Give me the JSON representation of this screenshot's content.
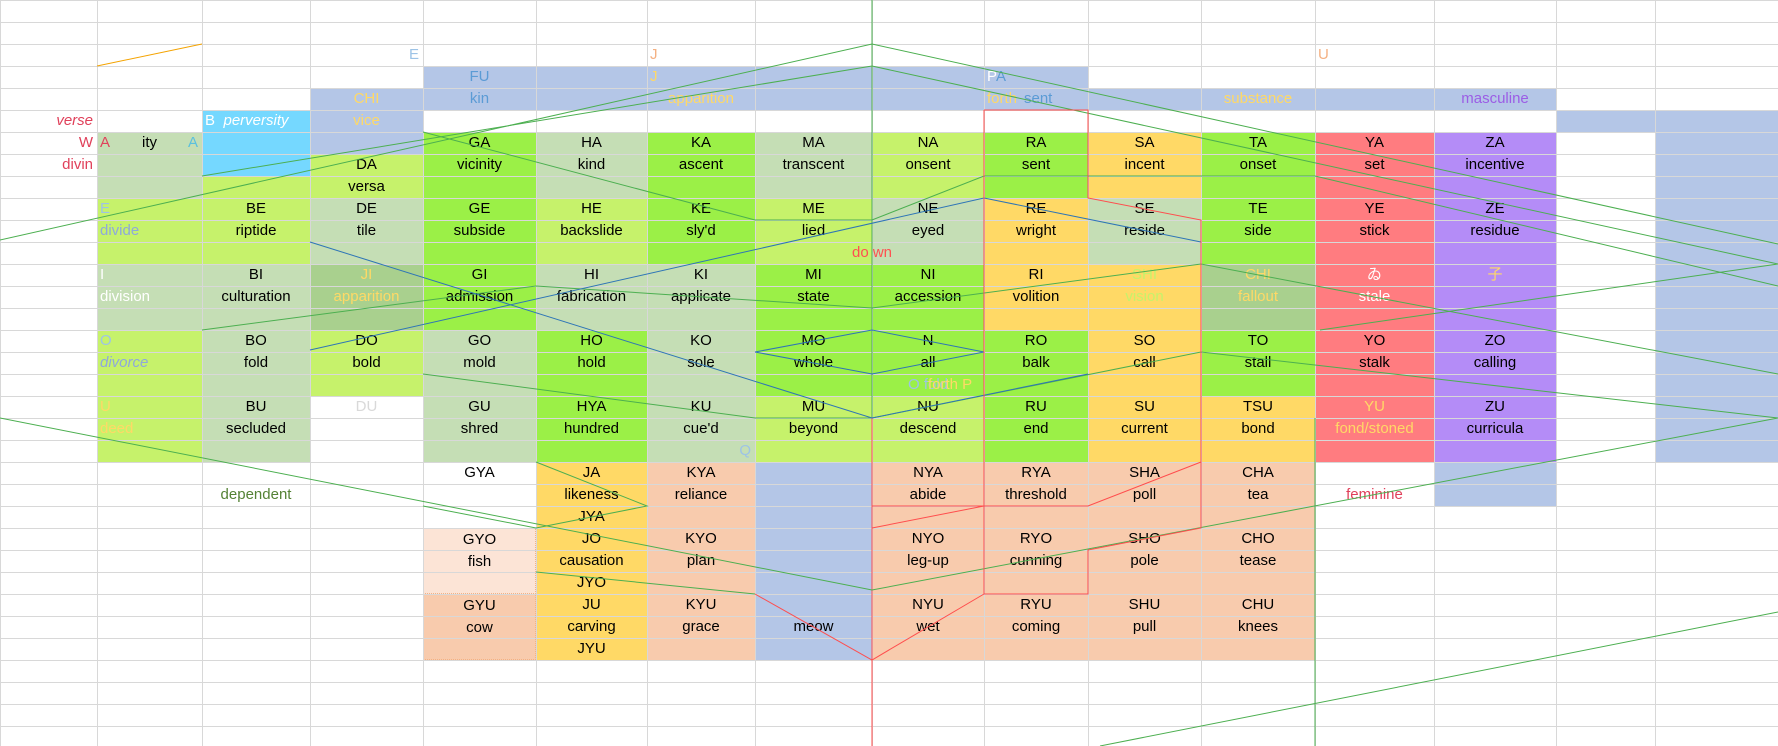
{
  "colors": {
    "blue": "#b4c6e7",
    "lightgreen": "#c6f26b",
    "brightgreen": "#9bf047",
    "sage": "#c5deb5",
    "darksage": "#a9d08e",
    "orange": "#ffd966",
    "red": "#ff7c80",
    "purple": "#b48cf7",
    "peach": "#f8cbad",
    "lightpeach": "#fce4d6",
    "cyan": "#75d8ff",
    "white": "#ffffff"
  },
  "cells": [
    {
      "c": "blue",
      "c0": 10,
      "c1": 13,
      "r0": 4,
      "r1": 5
    },
    {
      "c": "blue",
      "c0": 4,
      "c1": 10,
      "r0": 3,
      "r1": 5
    },
    {
      "c": "blue",
      "c0": 15,
      "c1": 16,
      "r0": 6,
      "r1": 21
    },
    {
      "c": "blue",
      "c0": 13,
      "c1": 14,
      "r0": 4,
      "r1": 5
    },
    {
      "c": "blue",
      "c0": 14,
      "c1": 16,
      "r0": 5,
      "r1": 6
    },
    {
      "c": "blue",
      "c0": 3,
      "c1": 4,
      "r0": 4,
      "r1": 7
    },
    {
      "c": "blue",
      "c0": 7,
      "c1": 8,
      "r0": 21,
      "r1": 30
    },
    {
      "c": "blue",
      "c0": 13,
      "c1": 14,
      "r0": 21,
      "r1": 23
    },
    {
      "c": "sage",
      "c0": 1,
      "c1": 2,
      "r0": 6,
      "r1": 9,
      "t1": "ity",
      "t1c": "#000000"
    },
    {
      "c": "cyan",
      "c0": 2,
      "c1": 3,
      "r0": 5,
      "r1": 8,
      "t1": "perversity",
      "t1c": "#ffffff",
      "t1i": true
    },
    {
      "c": "lightgreen",
      "c0": 2,
      "c1": 3,
      "r0": 8,
      "r1": 9
    },
    {
      "c": "lightgreen",
      "c0": 3,
      "c1": 4,
      "r0": 7,
      "r1": 9,
      "t0": "DA",
      "t1": "versa"
    },
    {
      "c": "brightgreen",
      "c0": 4,
      "c1": 5,
      "r0": 6,
      "r1": 9,
      "t0": "GA",
      "t1": "vicinity"
    },
    {
      "c": "sage",
      "c0": 5,
      "c1": 6,
      "r0": 6,
      "r1": 9,
      "t0": "HA",
      "t1": "kind"
    },
    {
      "c": "brightgreen",
      "c0": 6,
      "c1": 7,
      "r0": 6,
      "r1": 9,
      "t0": "KA",
      "t1": "ascent"
    },
    {
      "c": "sage",
      "c0": 7,
      "c1": 8,
      "r0": 6,
      "r1": 9,
      "t0": "MA",
      "t1": "transcent"
    },
    {
      "c": "lightgreen",
      "c0": 8,
      "c1": 9,
      "r0": 6,
      "r1": 9,
      "t0": "NA",
      "t1": "onsent"
    },
    {
      "c": "brightgreen",
      "c0": 9,
      "c1": 10,
      "r0": 6,
      "r1": 9,
      "t0": "RA",
      "t1": "sent"
    },
    {
      "c": "orange",
      "c0": 10,
      "c1": 11,
      "r0": 6,
      "r1": 9,
      "t0": "SA",
      "t1": "incent"
    },
    {
      "c": "brightgreen",
      "c0": 11,
      "c1": 12,
      "r0": 6,
      "r1": 9,
      "t0": "TA",
      "t1": "onset"
    },
    {
      "c": "red",
      "c0": 12,
      "c1": 13,
      "r0": 6,
      "r1": 9,
      "t0": "YA",
      "t1": "set"
    },
    {
      "c": "purple",
      "c0": 13,
      "c1": 14,
      "r0": 6,
      "r1": 9,
      "t0": "ZA",
      "t1": "incentive"
    },
    {
      "c": "lightgreen",
      "c0": 1,
      "c1": 2,
      "r0": 9,
      "r1": 12,
      "t0": "E",
      "t0c": "#9dc3e6",
      "t0l": true,
      "t1": "divide",
      "t1c": "#8ea9db",
      "t1l": true
    },
    {
      "c": "lightgreen",
      "c0": 2,
      "c1": 3,
      "r0": 9,
      "r1": 12,
      "t0": "BE",
      "t1": "riptide"
    },
    {
      "c": "sage",
      "c0": 3,
      "c1": 4,
      "r0": 9,
      "r1": 12,
      "t0": "DE",
      "t1": "tile"
    },
    {
      "c": "brightgreen",
      "c0": 4,
      "c1": 5,
      "r0": 9,
      "r1": 12,
      "t0": "GE",
      "t1": "subside"
    },
    {
      "c": "lightgreen",
      "c0": 5,
      "c1": 6,
      "r0": 9,
      "r1": 12,
      "t0": "HE",
      "t1": "backslide"
    },
    {
      "c": "brightgreen",
      "c0": 6,
      "c1": 7,
      "r0": 9,
      "r1": 12,
      "t0": "KE",
      "t1": "sly'd"
    },
    {
      "c": "lightgreen",
      "c0": 7,
      "c1": 8,
      "r0": 9,
      "r1": 12,
      "t0": "ME",
      "t1": "lied"
    },
    {
      "c": "sage",
      "c0": 8,
      "c1": 9,
      "r0": 9,
      "r1": 12,
      "t0": "NE",
      "t1": "eyed"
    },
    {
      "c": "orange",
      "c0": 9,
      "c1": 10,
      "r0": 9,
      "r1": 12,
      "t0": "RE",
      "t1": "wright"
    },
    {
      "c": "sage",
      "c0": 10,
      "c1": 11,
      "r0": 9,
      "r1": 12,
      "t0": "SE",
      "t1": "reside"
    },
    {
      "c": "brightgreen",
      "c0": 11,
      "c1": 12,
      "r0": 9,
      "r1": 12,
      "t0": "TE",
      "t1": "side"
    },
    {
      "c": "red",
      "c0": 12,
      "c1": 13,
      "r0": 9,
      "r1": 12,
      "t0": "YE",
      "t1": "stick"
    },
    {
      "c": "purple",
      "c0": 13,
      "c1": 14,
      "r0": 9,
      "r1": 12,
      "t0": "ZE",
      "t1": "residue"
    },
    {
      "c": "sage",
      "c0": 1,
      "c1": 2,
      "r0": 12,
      "r1": 15,
      "t0": "I",
      "t0c": "#ffffff",
      "t0l": true,
      "t1": "division",
      "t1c": "#ffffff",
      "t1l": true
    },
    {
      "c": "sage",
      "c0": 2,
      "c1": 3,
      "r0": 12,
      "r1": 15,
      "t0": "BI",
      "t1": "culturation"
    },
    {
      "c": "darksage",
      "c0": 3,
      "c1": 4,
      "r0": 12,
      "r1": 15,
      "t0": "JI",
      "t0c": "#ffd966",
      "t1": "apparition",
      "t1c": "#ffd966"
    },
    {
      "c": "brightgreen",
      "c0": 4,
      "c1": 5,
      "r0": 12,
      "r1": 15,
      "t0": "GI",
      "t1": "admission"
    },
    {
      "c": "sage",
      "c0": 5,
      "c1": 6,
      "r0": 12,
      "r1": 15,
      "t0": "HI",
      "t1": "fabrication"
    },
    {
      "c": "sage",
      "c0": 6,
      "c1": 7,
      "r0": 12,
      "r1": 15,
      "t0": "KI",
      "t1": "applicate"
    },
    {
      "c": "brightgreen",
      "c0": 7,
      "c1": 8,
      "r0": 12,
      "r1": 15,
      "t0": "MI",
      "t1": "state"
    },
    {
      "c": "brightgreen",
      "c0": 8,
      "c1": 9,
      "r0": 12,
      "r1": 15,
      "t0": "NI",
      "t1": "accession"
    },
    {
      "c": "orange",
      "c0": 9,
      "c1": 10,
      "r0": 12,
      "r1": 15,
      "t0": "RI",
      "t1": "volition"
    },
    {
      "c": "orange",
      "c0": 10,
      "c1": 11,
      "r0": 12,
      "r1": 15,
      "t0": "SHI",
      "t0c": "#c6f26b",
      "t1": "vision",
      "t1c": "#c6f26b"
    },
    {
      "c": "darksage",
      "c0": 11,
      "c1": 12,
      "r0": 12,
      "r1": 15,
      "t0": "CHI",
      "t0c": "#ffd966",
      "t1": "fallout",
      "t1c": "#ffd966"
    },
    {
      "c": "red",
      "c0": 12,
      "c1": 13,
      "r0": 12,
      "r1": 15,
      "t0": "ゐ",
      "t0c": "#ffffff",
      "t1": "stale",
      "t1c": "#ffffff"
    },
    {
      "c": "purple",
      "c0": 13,
      "c1": 14,
      "r0": 12,
      "r1": 15,
      "t0": "子",
      "t0c": "#ffd966",
      "t1": ""
    },
    {
      "c": "lightgreen",
      "c0": 1,
      "c1": 2,
      "r0": 15,
      "r1": 18,
      "t0": "O",
      "t0c": "#9dc3e6",
      "t0l": true,
      "t1": "divorce",
      "t1c": "#8ea9db",
      "t1l": true,
      "t1i": true
    },
    {
      "c": "sage",
      "c0": 2,
      "c1": 3,
      "r0": 15,
      "r1": 18,
      "t0": "BO",
      "t1": "fold"
    },
    {
      "c": "lightgreen",
      "c0": 3,
      "c1": 4,
      "r0": 15,
      "r1": 18,
      "t0": "DO",
      "t1": "bold"
    },
    {
      "c": "sage",
      "c0": 4,
      "c1": 5,
      "r0": 15,
      "r1": 18,
      "t0": "GO",
      "t1": "mold"
    },
    {
      "c": "brightgreen",
      "c0": 5,
      "c1": 6,
      "r0": 15,
      "r1": 18,
      "t0": "HO",
      "t1": "hold"
    },
    {
      "c": "sage",
      "c0": 6,
      "c1": 7,
      "r0": 15,
      "r1": 18,
      "t0": "KO",
      "t1": "sole"
    },
    {
      "c": "brightgreen",
      "c0": 7,
      "c1": 8,
      "r0": 15,
      "r1": 18,
      "t0": "MO",
      "t1": "whole"
    },
    {
      "c": "brightgreen",
      "c0": 8,
      "c1": 9,
      "r0": 15,
      "r1": 18,
      "t0": "N",
      "t1": "all"
    },
    {
      "c": "brightgreen",
      "c0": 9,
      "c1": 10,
      "r0": 15,
      "r1": 18,
      "t0": "RO",
      "t1": "balk"
    },
    {
      "c": "orange",
      "c0": 10,
      "c1": 11,
      "r0": 15,
      "r1": 18,
      "t0": "SO",
      "t1": "call"
    },
    {
      "c": "brightgreen",
      "c0": 11,
      "c1": 12,
      "r0": 15,
      "r1": 18,
      "t0": "TO",
      "t1": "stall"
    },
    {
      "c": "red",
      "c0": 12,
      "c1": 13,
      "r0": 15,
      "r1": 18,
      "t0": "YO",
      "t1": "stalk"
    },
    {
      "c": "purple",
      "c0": 13,
      "c1": 14,
      "r0": 15,
      "r1": 18,
      "t0": "ZO",
      "t1": "calling"
    },
    {
      "c": "lightgreen",
      "c0": 1,
      "c1": 2,
      "r0": 18,
      "r1": 21,
      "t0": "U",
      "t0c": "#ffd966",
      "t0l": true,
      "t1": "deed",
      "t1c": "#ffd966",
      "t1l": true
    },
    {
      "c": "sage",
      "c0": 2,
      "c1": 3,
      "r0": 18,
      "r1": 21,
      "t0": "BU",
      "t1": "secluded"
    },
    {
      "c": "white",
      "c0": 3,
      "c1": 4,
      "r0": 18,
      "r1": 21,
      "t0": "DU",
      "t0c": "#d9d9d9",
      "t1": ""
    },
    {
      "c": "sage",
      "c0": 4,
      "c1": 5,
      "r0": 18,
      "r1": 21,
      "t0": "GU",
      "t1": "shred"
    },
    {
      "c": "brightgreen",
      "c0": 5,
      "c1": 6,
      "r0": 18,
      "r1": 21,
      "t0": "HYA",
      "t1": "hundred"
    },
    {
      "c": "sage",
      "c0": 6,
      "c1": 7,
      "r0": 18,
      "r1": 21,
      "t0": "KU",
      "t1": "cue'd"
    },
    {
      "c": "lightgreen",
      "c0": 7,
      "c1": 8,
      "r0": 18,
      "r1": 21,
      "t0": "MU",
      "t1": "beyond"
    },
    {
      "c": "lightgreen",
      "c0": 8,
      "c1": 9,
      "r0": 18,
      "r1": 21,
      "t0": "NU",
      "t1": "descend"
    },
    {
      "c": "brightgreen",
      "c0": 9,
      "c1": 10,
      "r0": 18,
      "r1": 21,
      "t0": "RU",
      "t1": "end"
    },
    {
      "c": "orange",
      "c0": 10,
      "c1": 11,
      "r0": 18,
      "r1": 21,
      "t0": "SU",
      "t1": "current"
    },
    {
      "c": "orange",
      "c0": 11,
      "c1": 12,
      "r0": 18,
      "r1": 21,
      "t0": "TSU",
      "t1": "bond"
    },
    {
      "c": "red",
      "c0": 12,
      "c1": 13,
      "r0": 18,
      "r1": 21,
      "t0": "YU",
      "t0c": "#ffd966",
      "t1": "fond/stoned",
      "t1c": "#ffd966"
    },
    {
      "c": "purple",
      "c0": 13,
      "c1": 14,
      "r0": 18,
      "r1": 21,
      "t0": "ZU",
      "t1": "curricula"
    },
    {
      "c": "white",
      "c0": 4,
      "c1": 5,
      "r0": 21,
      "r1": 24,
      "t0": "GYA",
      "t1": ""
    },
    {
      "c": "orange",
      "c0": 5,
      "c1": 6,
      "r0": 21,
      "r1": 24,
      "t0": "JA",
      "t1": "likeness",
      "t2": "JYA"
    },
    {
      "c": "peach",
      "c0": 6,
      "c1": 7,
      "r0": 21,
      "r1": 24,
      "t0": "KYA",
      "t1": "reliance"
    },
    {
      "c": "peach",
      "c0": 8,
      "c1": 9,
      "r0": 21,
      "r1": 24,
      "t0": "NYA",
      "t1": "abide"
    },
    {
      "c": "peach",
      "c0": 9,
      "c1": 10,
      "r0": 21,
      "r1": 24,
      "t0": "RYA",
      "t1": "threshold"
    },
    {
      "c": "peach",
      "c0": 10,
      "c1": 11,
      "r0": 21,
      "r1": 24,
      "t0": "SHA",
      "t1": "poll"
    },
    {
      "c": "peach",
      "c0": 11,
      "c1": 12,
      "r0": 21,
      "r1": 24,
      "t0": "CHA",
      "t1": "tea"
    },
    {
      "c": "lightpeach",
      "c0": 4,
      "c1": 5,
      "r0": 24,
      "r1": 27,
      "t0": "GYO",
      "t1": "fish",
      "dot": true
    },
    {
      "c": "orange",
      "c0": 5,
      "c1": 6,
      "r0": 24,
      "r1": 27,
      "t0": "JO",
      "t1": "causation",
      "t2": "JYO"
    },
    {
      "c": "peach",
      "c0": 6,
      "c1": 7,
      "r0": 24,
      "r1": 27,
      "t0": "KYO",
      "t1": "plan"
    },
    {
      "c": "peach",
      "c0": 8,
      "c1": 9,
      "r0": 24,
      "r1": 27,
      "t0": "NYO",
      "t1": "leg-up"
    },
    {
      "c": "peach",
      "c0": 9,
      "c1": 10,
      "r0": 24,
      "r1": 27,
      "t0": "RYO",
      "t1": "cunning"
    },
    {
      "c": "peach",
      "c0": 10,
      "c1": 11,
      "r0": 24,
      "r1": 27,
      "t0": "SHO",
      "t1": "pole"
    },
    {
      "c": "peach",
      "c0": 11,
      "c1": 12,
      "r0": 24,
      "r1": 27,
      "t0": "CHO",
      "t1": "tease"
    },
    {
      "c": "peach",
      "c0": 4,
      "c1": 5,
      "r0": 27,
      "r1": 30,
      "t0": "GYU",
      "t1": "cow",
      "dot": true
    },
    {
      "c": "orange",
      "c0": 5,
      "c1": 6,
      "r0": 27,
      "r1": 30,
      "t0": "JU",
      "t1": "carving",
      "t2": "JYU"
    },
    {
      "c": "peach",
      "c0": 6,
      "c1": 7,
      "r0": 27,
      "r1": 30,
      "t0": "KYU",
      "t1": "grace"
    },
    {
      "c": "blue",
      "c0": 7,
      "c1": 8,
      "r0": 27,
      "r1": 30,
      "t0": "",
      "t1": "meow"
    },
    {
      "c": "peach",
      "c0": 8,
      "c1": 9,
      "r0": 27,
      "r1": 30,
      "t0": "NYU",
      "t1": "wet"
    },
    {
      "c": "peach",
      "c0": 9,
      "c1": 10,
      "r0": 27,
      "r1": 30,
      "t0": "RYU",
      "t1": "coming"
    },
    {
      "c": "peach",
      "c0": 10,
      "c1": 11,
      "r0": 27,
      "r1": 30,
      "t0": "SHU",
      "t1": "pull"
    },
    {
      "c": "peach",
      "c0": 11,
      "c1": 12,
      "r0": 27,
      "r1": 30,
      "t0": "CHU",
      "t1": "knees"
    }
  ],
  "labels": [
    {
      "t": "E",
      "c": "#9dc3e6",
      "col": 3,
      "row": 2,
      "al": "r"
    },
    {
      "t": "J",
      "c": "#f4b183",
      "col": 6,
      "row": 2,
      "al": "l"
    },
    {
      "t": "U",
      "c": "#f4b183",
      "col": 12,
      "row": 2,
      "al": "l"
    },
    {
      "t": "FU",
      "c": "#5b9bd5",
      "col": 4,
      "row": 3,
      "al": "c"
    },
    {
      "t": "kin",
      "c": "#5b9bd5",
      "col": 4,
      "row": 4,
      "al": "c"
    },
    {
      "t": "J",
      "c": "#ffd966",
      "col": 6,
      "row": 3,
      "al": "l"
    },
    {
      "t": "apparition",
      "c": "#ffd966",
      "col": 6,
      "row": 4,
      "al": "c"
    },
    {
      "t": "P",
      "c": "#ffffff",
      "col": 9,
      "row": 3,
      "al": "l"
    },
    {
      "t": "A",
      "c": "#5b9bd5",
      "col": 9,
      "row": 3,
      "al": "l2"
    },
    {
      "t": "forth",
      "c": "#ffd966",
      "col": 9,
      "row": 4,
      "al": "l"
    },
    {
      "t": "sent",
      "c": "#5b9bd5",
      "col": 9,
      "row": 4,
      "al": "l3"
    },
    {
      "t": "substance",
      "c": "#ffd966",
      "col": 11,
      "row": 4,
      "al": "c"
    },
    {
      "t": "masculine",
      "c": "#9b5de5",
      "col": 13,
      "row": 4,
      "al": "c"
    },
    {
      "t": "CHI",
      "c": "#ffd966",
      "col": 3,
      "row": 4,
      "al": "c"
    },
    {
      "t": "vice",
      "c": "#ffd966",
      "col": 3,
      "row": 5,
      "al": "c"
    },
    {
      "t": "verse",
      "c": "#e0405a",
      "col": 0,
      "row": 5,
      "al": "r",
      "i": true
    },
    {
      "t": "W",
      "c": "#e0405a",
      "col": 0,
      "row": 6,
      "al": "r"
    },
    {
      "t": "A",
      "c": "#e0405a",
      "col": 1,
      "row": 6,
      "al": "l"
    },
    {
      "t": "A",
      "c": "#5bc0de",
      "col": 1,
      "row": 6,
      "al": "r"
    },
    {
      "t": "B",
      "c": "#ffffff",
      "col": 2,
      "row": 5,
      "al": "l"
    },
    {
      "t": "divin",
      "c": "#e0405a",
      "col": 0,
      "row": 7,
      "al": "r"
    },
    {
      "t": "do  wn",
      "c": "#ff5050",
      "col": 8,
      "row": 11,
      "al": "cl"
    },
    {
      "t": "O fold",
      "c": "#9dc3e6",
      "col": 8,
      "row": 17,
      "al": "c"
    },
    {
      "t": "forth P",
      "c": "#ffd966",
      "col": 8,
      "row": 17,
      "al": "r2"
    },
    {
      "t": "Q",
      "c": "#9dc3e6",
      "col": 6,
      "row": 20,
      "al": "r"
    },
    {
      "t": "dependent",
      "c": "#548235",
      "col": 2,
      "row": 22,
      "al": "c"
    },
    {
      "t": "feminine",
      "c": "#e0405a",
      "col": 12,
      "row": 22,
      "al": "c"
    }
  ]
}
